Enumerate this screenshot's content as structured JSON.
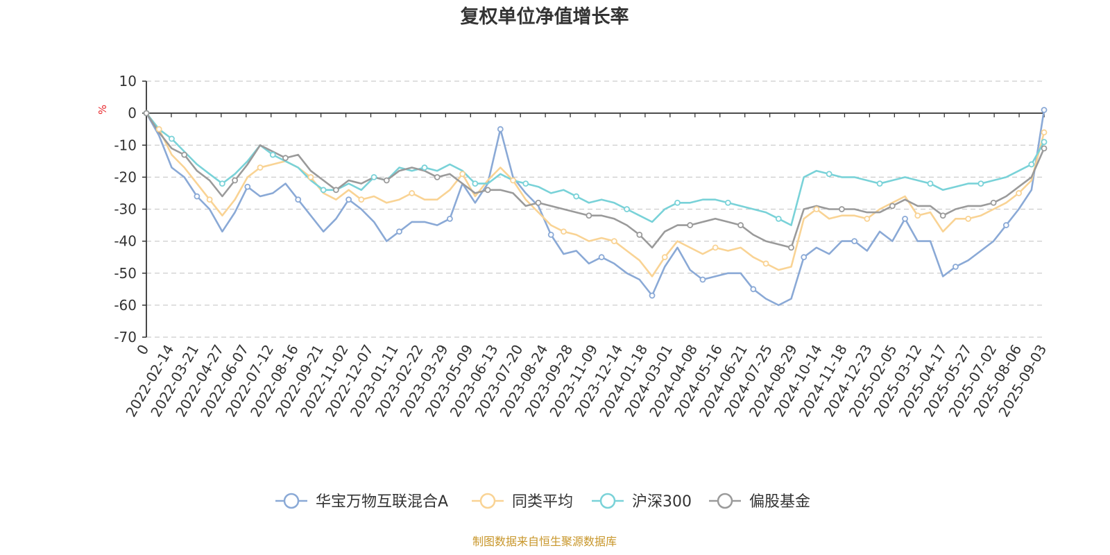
{
  "chart_data": {
    "type": "line",
    "title": "复权单位净值增长率",
    "ylabel": "%",
    "ylim": [
      -70,
      10
    ],
    "yticks": [
      10,
      0,
      -10,
      -20,
      -30,
      -40,
      -50,
      -60,
      -70
    ],
    "x_ticks": [
      "0",
      "2022-02-14",
      "2022-03-21",
      "2022-04-27",
      "2022-06-07",
      "2022-07-12",
      "2022-08-16",
      "2022-09-21",
      "2022-11-02",
      "2022-12-07",
      "2023-01-11",
      "2023-02-22",
      "2023-03-29",
      "2023-05-09",
      "2023-06-13",
      "2023-07-20",
      "2023-08-24",
      "2023-09-28",
      "2023-11-09",
      "2023-12-14",
      "2024-01-18",
      "2024-03-01",
      "2024-04-08",
      "2024-05-16",
      "2024-06-21",
      "2024-07-25",
      "2024-08-29",
      "2024-10-14",
      "2024-11-18",
      "2024-12-23",
      "2025-02-05",
      "2025-03-12",
      "2025-04-17",
      "2025-05-27",
      "2025-07-02",
      "2025-08-06",
      "2025-09-03"
    ],
    "grid": true,
    "legend_position": "bottom",
    "series": [
      {
        "name": "华宝万物互联混合A",
        "color": "#8aa9d6",
        "values": [
          0,
          -7,
          -17,
          -20,
          -26,
          -30,
          -37,
          -31,
          -23,
          -26,
          -25,
          -22,
          -27,
          -32,
          -37,
          -33,
          -27,
          -30,
          -34,
          -40,
          -37,
          -34,
          -34,
          -35,
          -33,
          -22,
          -28,
          -22,
          -5,
          -20,
          -25,
          -29,
          -38,
          -44,
          -43,
          -47,
          -45,
          -47,
          -50,
          -52,
          -57,
          -48,
          -42,
          -49,
          -52,
          -51,
          -50,
          -50,
          -55,
          -58,
          -60,
          -58,
          -45,
          -42,
          -44,
          -40,
          -40,
          -43,
          -37,
          -40,
          -33,
          -40,
          -40,
          -51,
          -48,
          -46,
          -43,
          -40,
          -35,
          -30,
          -24,
          1
        ]
      },
      {
        "name": "同类平均",
        "color": "#f9d394",
        "values": [
          0,
          -5,
          -13,
          -17,
          -22,
          -27,
          -32,
          -27,
          -20,
          -17,
          -16,
          -15,
          -17,
          -20,
          -25,
          -27,
          -24,
          -27,
          -26,
          -28,
          -27,
          -25,
          -27,
          -27,
          -24,
          -19,
          -26,
          -21,
          -17,
          -21,
          -27,
          -31,
          -35,
          -37,
          -38,
          -40,
          -39,
          -40,
          -43,
          -46,
          -51,
          -45,
          -40,
          -42,
          -44,
          -42,
          -43,
          -42,
          -45,
          -47,
          -49,
          -48,
          -33,
          -30,
          -33,
          -32,
          -32,
          -33,
          -30,
          -28,
          -26,
          -32,
          -31,
          -37,
          -33,
          -33,
          -32,
          -30,
          -28,
          -25,
          -21,
          -6
        ]
      },
      {
        "name": "沪深300",
        "color": "#79d2d8",
        "values": [
          0,
          -5,
          -8,
          -12,
          -16,
          -19,
          -22,
          -19,
          -15,
          -10,
          -13,
          -15,
          -17,
          -21,
          -24,
          -24,
          -22,
          -24,
          -20,
          -21,
          -17,
          -18,
          -17,
          -18,
          -16,
          -18,
          -22,
          -22,
          -19,
          -21,
          -22,
          -23,
          -25,
          -24,
          -26,
          -28,
          -27,
          -28,
          -30,
          -32,
          -34,
          -30,
          -28,
          -28,
          -27,
          -27,
          -28,
          -29,
          -30,
          -31,
          -33,
          -35,
          -20,
          -18,
          -19,
          -20,
          -20,
          -21,
          -22,
          -21,
          -20,
          -21,
          -22,
          -24,
          -23,
          -22,
          -22,
          -21,
          -20,
          -18,
          -16,
          -9
        ]
      },
      {
        "name": "偏股基金",
        "color": "#9a9a9a",
        "values": [
          0,
          -6,
          -11,
          -13,
          -18,
          -21,
          -26,
          -21,
          -16,
          -10,
          -12,
          -14,
          -13,
          -18,
          -21,
          -24,
          -21,
          -22,
          -20,
          -21,
          -18,
          -17,
          -18,
          -20,
          -19,
          -22,
          -25,
          -24,
          -24,
          -25,
          -29,
          -28,
          -29,
          -30,
          -31,
          -32,
          -32,
          -33,
          -35,
          -38,
          -42,
          -37,
          -35,
          -35,
          -34,
          -33,
          -34,
          -35,
          -38,
          -40,
          -41,
          -42,
          -30,
          -29,
          -30,
          -30,
          -30,
          -31,
          -31,
          -29,
          -27,
          -29,
          -29,
          -32,
          -30,
          -29,
          -29,
          -28,
          -26,
          -23,
          -20,
          -11
        ]
      }
    ]
  },
  "source_note": "制图数据来自恒生聚源数据库",
  "colors": {
    "axis": "#333333",
    "grid": "#cccccc",
    "ylabel": "#e8262a",
    "source": "#c8962a"
  }
}
